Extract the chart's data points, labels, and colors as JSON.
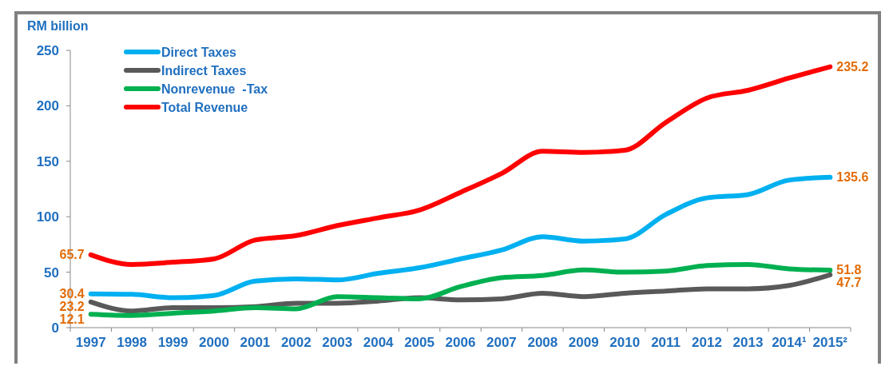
{
  "chart_data": {
    "type": "line",
    "ylabel": "RM billion",
    "categories": [
      "1997",
      "1998",
      "1999",
      "2000",
      "2001",
      "2002",
      "2003",
      "2004",
      "2005",
      "2006",
      "2007",
      "2008",
      "2009",
      "2010",
      "2011",
      "2012",
      "2013",
      "2014¹",
      "2015²"
    ],
    "series": [
      {
        "name": "Direct Taxes",
        "color": "#00b0f0",
        "values": [
          30.4,
          30,
          27,
          29,
          42,
          44,
          43,
          49,
          54,
          62,
          70,
          82,
          78,
          80,
          102,
          117,
          120,
          133,
          135.6
        ],
        "value_labels": [
          "30.4",
          null,
          null,
          null,
          null,
          null,
          null,
          null,
          null,
          null,
          null,
          null,
          null,
          null,
          null,
          null,
          null,
          null,
          "135.6"
        ]
      },
      {
        "name": "Indirect Taxes",
        "color": "#595959",
        "values": [
          23.2,
          15,
          18,
          18,
          19,
          22,
          22,
          24,
          27,
          25,
          26,
          31,
          28,
          31,
          33,
          35,
          35,
          38,
          47.7
        ],
        "value_labels": [
          "23.2",
          null,
          null,
          null,
          null,
          null,
          null,
          null,
          null,
          null,
          null,
          null,
          null,
          null,
          null,
          null,
          null,
          null,
          "47.7"
        ]
      },
      {
        "name": "Nonrevenue  -Tax",
        "color": "#00b050",
        "values": [
          12.1,
          11,
          13,
          15,
          18,
          17,
          28,
          27,
          26,
          37,
          45,
          47,
          52,
          50,
          51,
          56,
          57,
          53,
          51.8
        ],
        "value_labels": [
          "12.1",
          null,
          null,
          null,
          null,
          null,
          null,
          null,
          null,
          null,
          null,
          null,
          null,
          null,
          null,
          null,
          null,
          null,
          "51.8"
        ]
      },
      {
        "name": "Total Revenue",
        "color": "#ff0000",
        "values": [
          65.7,
          57,
          59,
          62,
          79,
          83,
          92,
          99,
          106,
          122,
          139,
          159,
          158,
          160,
          185,
          207,
          214,
          225,
          235.2
        ],
        "value_labels": [
          "65.7",
          null,
          null,
          null,
          null,
          null,
          null,
          null,
          null,
          null,
          null,
          null,
          null,
          null,
          null,
          null,
          null,
          null,
          "235.2"
        ]
      }
    ],
    "ylim": [
      0,
      250
    ],
    "yticks": [
      0,
      50,
      100,
      150,
      200,
      250
    ],
    "grid": false,
    "legend": "top left",
    "line_style": "solid",
    "marker": "none"
  }
}
